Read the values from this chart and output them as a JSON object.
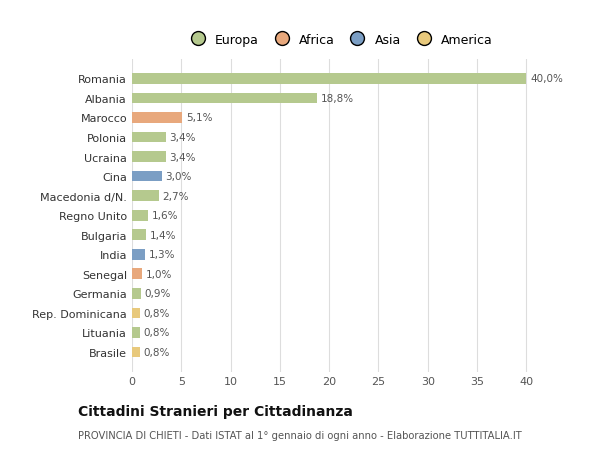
{
  "categories": [
    "Brasile",
    "Lituania",
    "Rep. Dominicana",
    "Germania",
    "Senegal",
    "India",
    "Bulgaria",
    "Regno Unito",
    "Macedonia d/N.",
    "Cina",
    "Ucraina",
    "Polonia",
    "Marocco",
    "Albania",
    "Romania"
  ],
  "values": [
    0.8,
    0.8,
    0.8,
    0.9,
    1.0,
    1.3,
    1.4,
    1.6,
    2.7,
    3.0,
    3.4,
    3.4,
    5.1,
    18.8,
    40.0
  ],
  "labels": [
    "0,8%",
    "0,8%",
    "0,8%",
    "0,9%",
    "1,0%",
    "1,3%",
    "1,4%",
    "1,6%",
    "2,7%",
    "3,0%",
    "3,4%",
    "3,4%",
    "5,1%",
    "18,8%",
    "40,0%"
  ],
  "continents": [
    "America",
    "Europa",
    "America",
    "Europa",
    "Africa",
    "Asia",
    "Europa",
    "Europa",
    "Europa",
    "Asia",
    "Europa",
    "Europa",
    "Africa",
    "Europa",
    "Europa"
  ],
  "colors": {
    "Europa": "#b5c98e",
    "Africa": "#e8a87c",
    "Asia": "#7b9ec4",
    "America": "#e8c97c"
  },
  "legend_order": [
    "Europa",
    "Africa",
    "Asia",
    "America"
  ],
  "legend_colors": {
    "Europa": "#b5c98e",
    "Africa": "#e8a87c",
    "Asia": "#7b9ec4",
    "America": "#e8c97c"
  },
  "xlim": [
    0,
    42
  ],
  "xticks": [
    0,
    5,
    10,
    15,
    20,
    25,
    30,
    35,
    40
  ],
  "title": "Cittadini Stranieri per Cittadinanza",
  "subtitle": "PROVINCIA DI CHIETI - Dati ISTAT al 1° gennaio di ogni anno - Elaborazione TUTTITALIA.IT",
  "background_color": "#ffffff",
  "bar_background": "#ffffff",
  "grid_color": "#dddddd",
  "bar_height": 0.55
}
